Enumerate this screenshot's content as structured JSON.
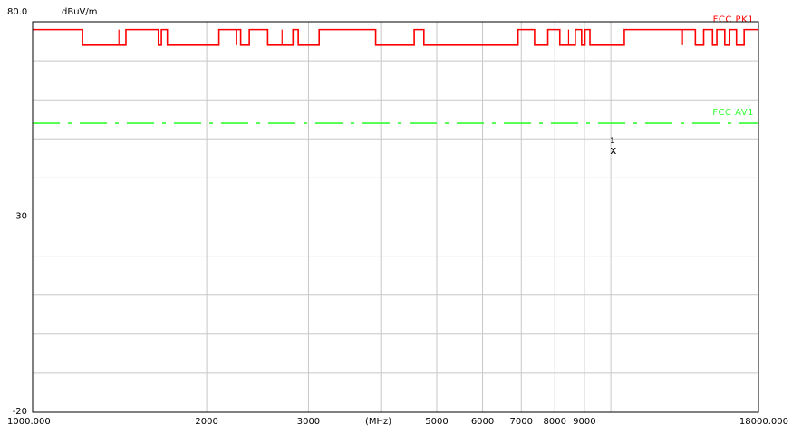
{
  "y_top_label": "80.0",
  "y_unit_label": "dBuV/m",
  "x_unit_label": "(MHz)",
  "colors": {
    "peak": "#ff0000",
    "average": "#33ff33",
    "grid": "#c8c8c8",
    "frame": "#000000",
    "marker": "#000000"
  },
  "chart_data": {
    "type": "line",
    "title": "",
    "xlabel": "(MHz)",
    "ylabel": "dBuV/m",
    "x_scale": "log",
    "xlim": [
      1000,
      18000
    ],
    "ylim": [
      -20,
      80
    ],
    "x_ticks": [
      {
        "value": 1000,
        "label": "1000.000"
      },
      {
        "value": 2000,
        "label": "2000"
      },
      {
        "value": 3000,
        "label": "3000"
      },
      {
        "value": 5000,
        "label": "5000"
      },
      {
        "value": 6000,
        "label": "6000"
      },
      {
        "value": 7000,
        "label": "7000"
      },
      {
        "value": 8000,
        "label": "8000"
      },
      {
        "value": 9000,
        "label": "9000"
      },
      {
        "value": 18000,
        "label": "18000.000"
      }
    ],
    "x_minor_grid": [
      4000,
      10000
    ],
    "y_tick_labels": [
      {
        "value": 80,
        "label": "80.0"
      },
      {
        "value": 30,
        "label": "30"
      },
      {
        "value": -20,
        "label": "-20"
      }
    ],
    "y_grid": [
      70,
      60,
      50,
      40,
      30,
      20,
      10,
      0,
      -10
    ],
    "grid": true,
    "series": [
      {
        "name": "FCC PK1",
        "color": "#ff0000",
        "style": "solid",
        "low": 74,
        "high": 78,
        "high_segments": [
          [
            1000,
            1220
          ],
          [
            1450,
            1650
          ],
          [
            1670,
            1710
          ],
          [
            2100,
            2290
          ],
          [
            2370,
            2550
          ],
          [
            2820,
            2880
          ],
          [
            3130,
            3920
          ],
          [
            4570,
            4750
          ],
          [
            6910,
            7380
          ],
          [
            7780,
            8160
          ],
          [
            8680,
            8900
          ],
          [
            9020,
            9200
          ],
          [
            10550,
            14000
          ],
          [
            14470,
            14990
          ],
          [
            15250,
            15740
          ],
          [
            16050,
            16490
          ],
          [
            17000,
            18000
          ]
        ],
        "spikes": [
          1410,
          2250,
          2700,
          8450,
          13300
        ]
      },
      {
        "name": "FCC AV1",
        "color": "#33ff33",
        "style": "dashed",
        "value": 54
      }
    ],
    "markers": [
      {
        "label": "1",
        "symbol": "x",
        "x": 10100,
        "y": 47
      }
    ],
    "legend": "inline-right"
  }
}
